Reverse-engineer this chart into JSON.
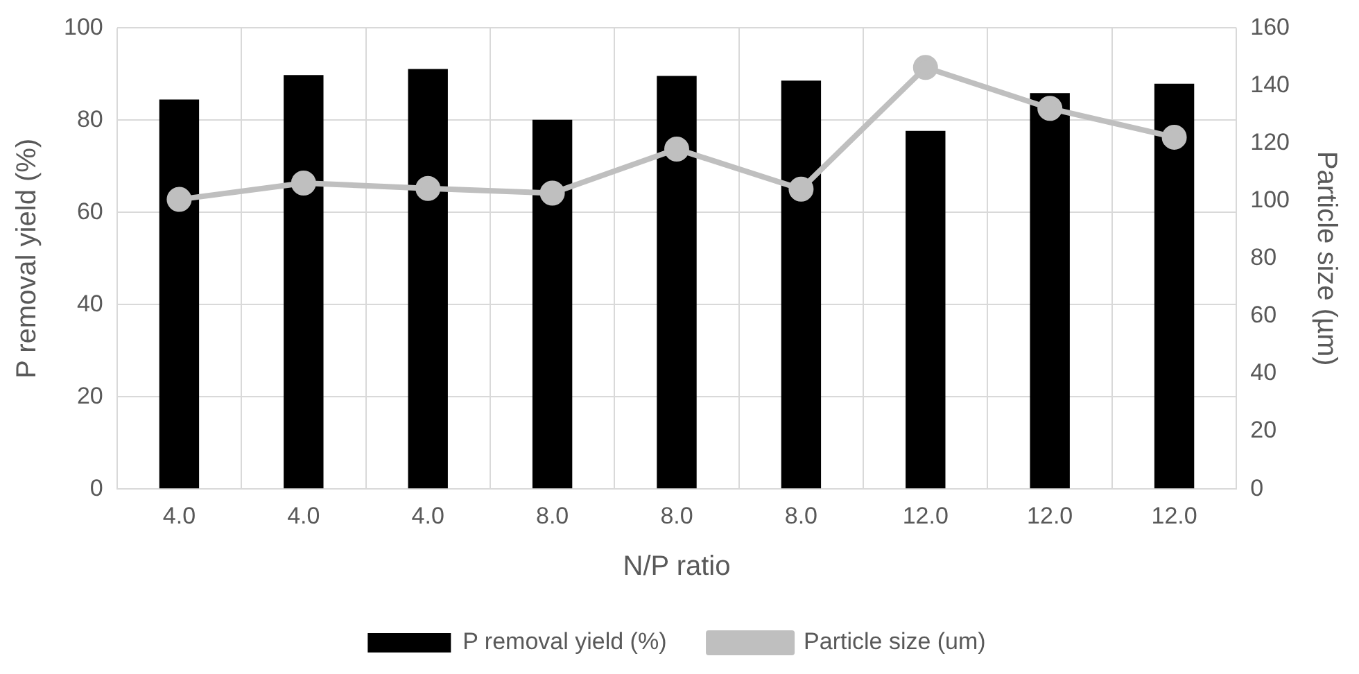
{
  "chart_data": {
    "type": "bar",
    "xlabel": "N/P ratio",
    "ylabel": "P removal yield (%)",
    "y2label": "Particle size (µm)",
    "categories": [
      "4.0",
      "4.0",
      "4.0",
      "8.0",
      "8.0",
      "8.0",
      "12.0",
      "12.0",
      "12.0"
    ],
    "series": [
      {
        "name": "P removal yield (%)",
        "color": "#000000",
        "values": [
          84.5,
          89.8,
          91.1,
          80.1,
          89.6,
          88.6,
          77.7,
          85.9,
          87.9
        ]
      },
      {
        "name": "Particle size (um)",
        "type": "line",
        "axis": "y2",
        "color": "#bfbfbf",
        "values": [
          100.5,
          106.2,
          104.3,
          102.7,
          118,
          104.1,
          146.3,
          132.1,
          122.1
        ]
      }
    ],
    "ylim": [
      0,
      100
    ],
    "yticks": [
      0,
      20,
      40,
      60,
      80,
      100
    ],
    "y2lim": [
      0,
      160
    ],
    "y2ticks": [
      0,
      20,
      40,
      60,
      80,
      100,
      120,
      140,
      160
    ],
    "grid": true,
    "legend": "bottom",
    "marker": "circle"
  }
}
